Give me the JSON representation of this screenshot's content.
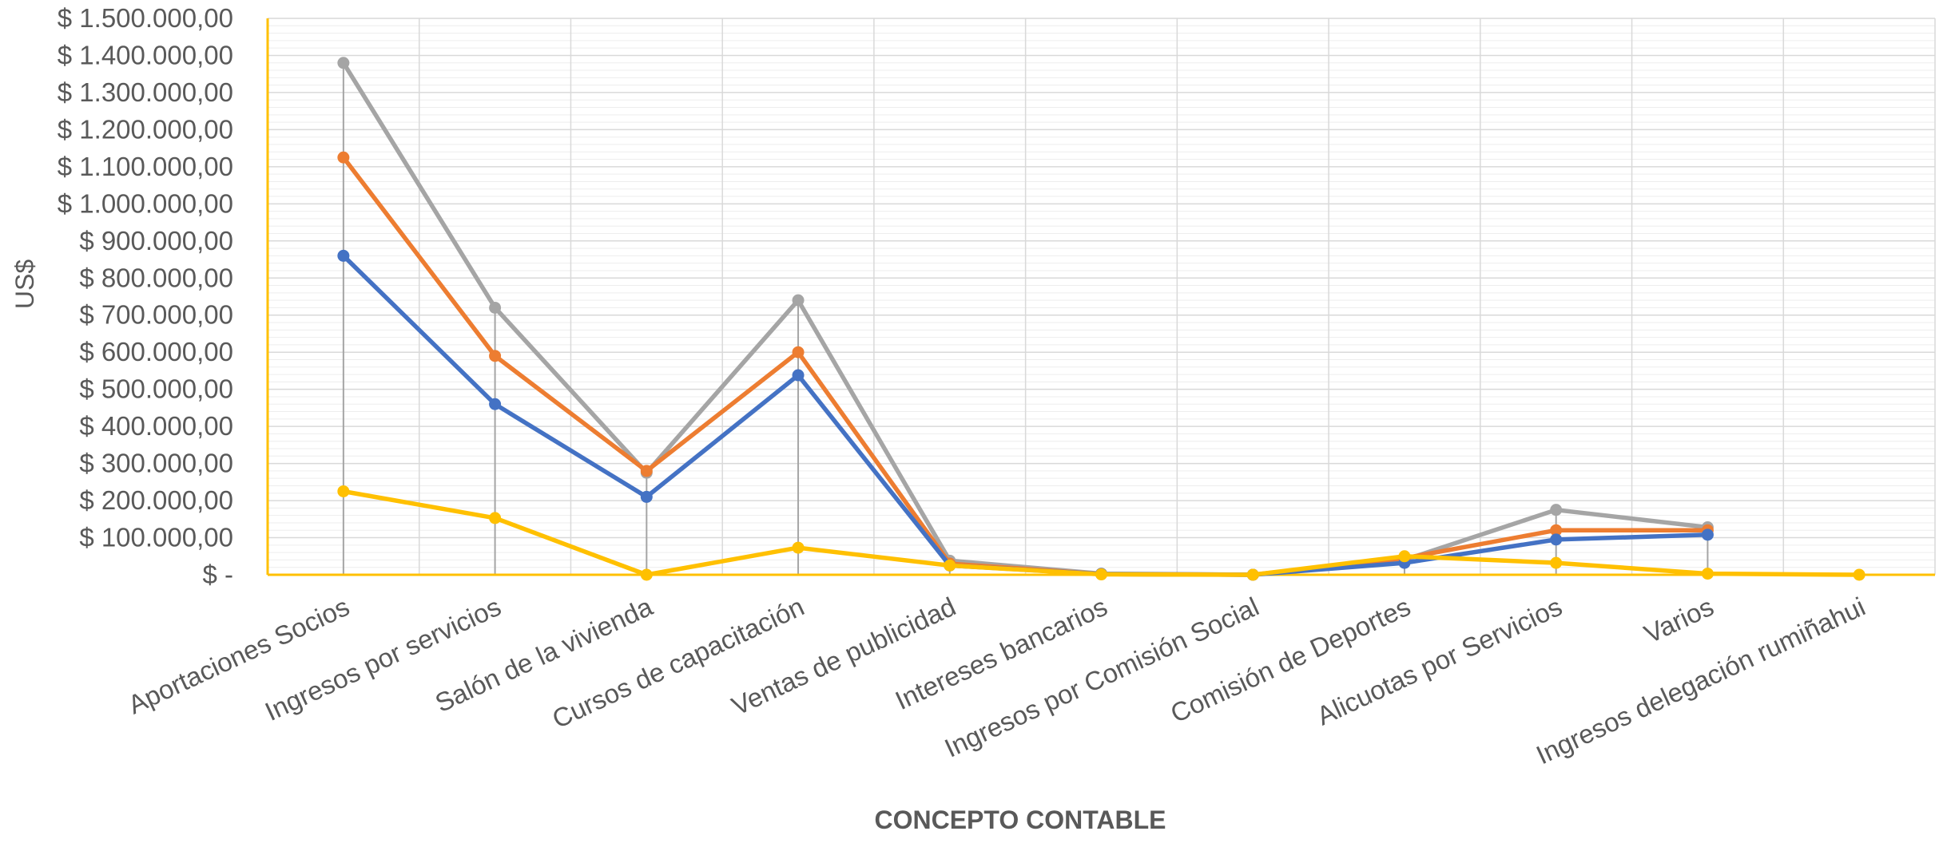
{
  "chart_data": {
    "type": "line",
    "title": "",
    "xlabel": "CONCEPTO CONTABLE",
    "ylabel": "US$",
    "ylim": [
      0,
      1500000
    ],
    "y_ticks": [
      {
        "value": 0,
        "label": "$ -"
      },
      {
        "value": 100000,
        "label": "$ 100.000,00"
      },
      {
        "value": 200000,
        "label": "$ 200.000,00"
      },
      {
        "value": 300000,
        "label": "$ 300.000,00"
      },
      {
        "value": 400000,
        "label": "$ 400.000,00"
      },
      {
        "value": 500000,
        "label": "$ 500.000,00"
      },
      {
        "value": 600000,
        "label": "$ 600.000,00"
      },
      {
        "value": 700000,
        "label": "$ 700.000,00"
      },
      {
        "value": 800000,
        "label": "$ 800.000,00"
      },
      {
        "value": 900000,
        "label": "$ 900.000,00"
      },
      {
        "value": 1000000,
        "label": "$ 1.000.000,00"
      },
      {
        "value": 1100000,
        "label": "$ 1.100.000,00"
      },
      {
        "value": 1200000,
        "label": "$ 1.200.000,00"
      },
      {
        "value": 1300000,
        "label": "$ 1.300.000,00"
      },
      {
        "value": 1400000,
        "label": "$ 1.400.000,00"
      },
      {
        "value": 1500000,
        "label": "$ 1.500.000,00"
      }
    ],
    "categories": [
      "Aportaciones Socios",
      "Ingresos por servicios",
      "Salón de la vivienda",
      "Cursos de capacitación",
      "Ventas de publicidad",
      "Intereses bancarios",
      "Ingresos por Comisión Social",
      "Comisión de Deportes",
      "Alicuotas por Servicios",
      "Varios",
      "Ingresos delegación rumiñahui"
    ],
    "grid": true,
    "legend": "none",
    "series": [
      {
        "color": "#A5A5A5",
        "values": [
          1380000,
          720000,
          275000,
          740000,
          38000,
          3000,
          0,
          40000,
          175000,
          128000,
          null
        ]
      },
      {
        "color": "#ED7D31",
        "values": [
          1125000,
          590000,
          280000,
          600000,
          30000,
          2000,
          0,
          45000,
          120000,
          120000,
          null
        ]
      },
      {
        "color": "#4472C4",
        "values": [
          860000,
          460000,
          210000,
          538000,
          25000,
          2000,
          0,
          32000,
          95000,
          108000,
          null
        ]
      },
      {
        "color": "#FFC000",
        "values": [
          225000,
          153000,
          0,
          73000,
          25000,
          1000,
          0,
          50000,
          32000,
          3000,
          0
        ]
      }
    ],
    "colors": {
      "grid_major": "#D9D9D9",
      "grid_minor": "#EDEDED",
      "axis_left": "#FFC000",
      "axis_bottom": "#FFC000",
      "drop_line": "#A5A5A5"
    }
  }
}
